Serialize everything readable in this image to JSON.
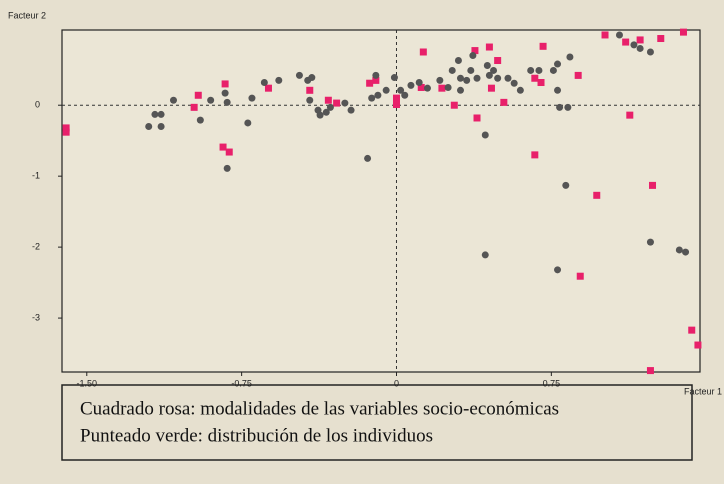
{
  "chart_data": {
    "type": "scatter",
    "xlabel": "Facteur 1",
    "ylabel": "Facteur 2",
    "xlim": [
      -1.62,
      1.47
    ],
    "ylim": [
      -3.76,
      1.06
    ],
    "xticks": [
      {
        "value": -1.5,
        "label": "-1.50"
      },
      {
        "value": -0.75,
        "label": "-0.75"
      },
      0,
      0.75
    ],
    "yticks": [
      0,
      -1,
      -2,
      -3
    ],
    "legend_lines": [
      "Cuadrado rosa: modalidades de las variables socio-económicas",
      "Punteado verde: distribución de los individuos"
    ],
    "series": [
      {
        "color": "#e8206a",
        "marker": "square",
        "x": [
          -1.6,
          -1.6,
          -0.96,
          -0.98,
          -0.83,
          -0.84,
          -0.81,
          -0.62,
          -0.42,
          -0.33,
          -0.29,
          -0.13,
          -0.1,
          0,
          0,
          0.13,
          0.12,
          0.22,
          0.28,
          0.39,
          0.38,
          0.45,
          0.49,
          0.46,
          0.52,
          0.67,
          0.7,
          0.71,
          0.67,
          0.88,
          0.89,
          0.97,
          1.01,
          1.11,
          1.13,
          1.18,
          1.24,
          1.28,
          1.39,
          1.23,
          1.43,
          1.46
        ],
        "y": [
          -0.32,
          -0.38,
          0.14,
          -0.03,
          0.3,
          -0.59,
          -0.66,
          0.24,
          0.21,
          0.07,
          0.03,
          0.31,
          0.35,
          0.1,
          0.01,
          0.75,
          0.25,
          0.24,
          0,
          -0.18,
          0.77,
          0.82,
          0.63,
          0.24,
          0.04,
          0.38,
          0.32,
          0.83,
          -0.7,
          0.42,
          -2.41,
          -1.27,
          0.99,
          0.89,
          -0.14,
          0.92,
          -1.13,
          0.94,
          1.03,
          -3.74,
          -3.17,
          -3.38
        ]
      },
      {
        "color": "#555555",
        "marker": "circle",
        "x": [
          -1.2,
          -1.17,
          -1.14,
          -1.14,
          -1.08,
          -0.95,
          -0.9,
          -0.83,
          -0.82,
          -0.82,
          -0.72,
          -0.7,
          -0.64,
          -0.57,
          -0.47,
          -0.43,
          -0.41,
          -0.42,
          -0.38,
          -0.37,
          -0.34,
          -0.32,
          -0.25,
          -0.22,
          -0.14,
          -0.1,
          -0.09,
          -0.12,
          -0.05,
          -0.01,
          0.02,
          0.04,
          0.07,
          0.11,
          0.15,
          0.21,
          0.25,
          0.27,
          0.3,
          0.31,
          0.31,
          0.34,
          0.36,
          0.37,
          0.39,
          0.43,
          0.43,
          0.44,
          0.45,
          0.47,
          0.49,
          0.54,
          0.57,
          0.6,
          0.65,
          0.69,
          0.76,
          0.78,
          0.78,
          0.79,
          0.83,
          0.82,
          0.84,
          0.78,
          1.08,
          1.15,
          1.18,
          1.23,
          1.23,
          1.37,
          1.4
        ],
        "y": [
          -0.3,
          -0.13,
          -0.3,
          -0.13,
          0.07,
          -0.21,
          0.07,
          0.17,
          0.04,
          -0.89,
          -0.25,
          0.1,
          0.32,
          0.35,
          0.42,
          0.35,
          0.39,
          0.07,
          -0.07,
          -0.14,
          -0.1,
          -0.03,
          0.03,
          -0.07,
          -0.75,
          0.42,
          0.14,
          0.1,
          0.21,
          0.39,
          0.21,
          0.14,
          0.28,
          0.32,
          0.24,
          0.35,
          0.25,
          0.49,
          0.63,
          0.21,
          0.38,
          0.35,
          0.49,
          0.7,
          0.38,
          -0.42,
          -2.11,
          0.56,
          0.42,
          0.49,
          0.38,
          0.38,
          0.31,
          0.21,
          0.49,
          0.49,
          0.49,
          0.21,
          -2.32,
          -0.03,
          -0.03,
          -1.13,
          0.68,
          0.58,
          0.99,
          0.85,
          0.8,
          0.75,
          -1.93,
          -2.04,
          -2.07
        ]
      }
    ]
  }
}
